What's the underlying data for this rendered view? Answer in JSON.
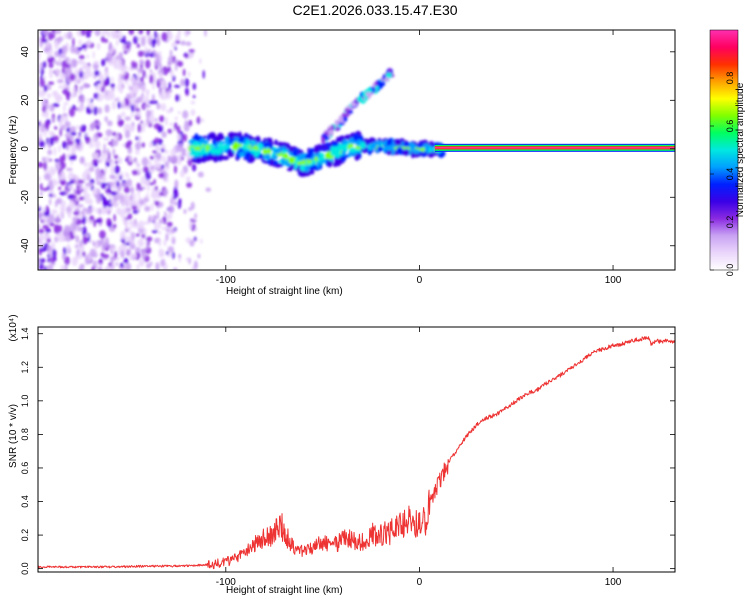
{
  "title": "C2E1.2026.033.15.47.E30",
  "chart_data": [
    {
      "type": "heatmap",
      "xlabel": "Height of straight line (km)",
      "ylabel": "Frequency (Hz)",
      "xlim": [
        -197,
        132
      ],
      "ylim": [
        -50,
        49
      ],
      "xticks": [
        -100,
        0,
        100
      ],
      "xtick_labels": [
        "-100",
        "0",
        "100"
      ],
      "yticks": [
        -40,
        -20,
        0,
        20,
        40
      ],
      "ytick_labels": [
        "-40",
        "-20",
        "0",
        "20",
        "40"
      ],
      "features": [
        {
          "name": "noise-field",
          "x_range": [
            -197,
            -108
          ],
          "y_range": [
            -50,
            49
          ]
        },
        {
          "name": "wandering-band",
          "points": [
            [
              -118,
              0
            ],
            [
              -100,
              1
            ],
            [
              -90,
              1
            ],
            [
              -80,
              -1
            ],
            [
              -70,
              -3
            ],
            [
              -60,
              -6
            ],
            [
              -52,
              -4
            ],
            [
              -45,
              -2
            ],
            [
              -35,
              1
            ],
            [
              -25,
              1
            ],
            [
              -15,
              1
            ],
            [
              -5,
              0
            ],
            [
              5,
              0
            ],
            [
              12,
              0
            ]
          ]
        },
        {
          "name": "branch",
          "points": [
            [
              -50,
              4
            ],
            [
              -42,
              10
            ],
            [
              -35,
              17
            ],
            [
              -28,
              22
            ],
            [
              -20,
              27
            ],
            [
              -14,
              32
            ]
          ]
        },
        {
          "name": "carrier-line",
          "x_range": [
            8,
            132
          ],
          "y": 0.4
        }
      ],
      "colorbar": {
        "label": "Normalized spectral amplitude",
        "range": [
          0,
          1
        ],
        "ticks": [
          0.0,
          0.2,
          0.4,
          0.6,
          0.8
        ],
        "tick_labels": [
          "0.0",
          "0.2",
          "0.4",
          "0.6",
          "0.8"
        ],
        "colors": [
          "#ffffff",
          "#ead6fb",
          "#c9a3f3",
          "#8a2be2",
          "#3a00e6",
          "#0020ff",
          "#00a0ff",
          "#00e8e0",
          "#00ff60",
          "#80ff00",
          "#ffff00",
          "#ffa000",
          "#ff3000",
          "#ff0060",
          "#ff2fb0"
        ]
      }
    },
    {
      "type": "line",
      "xlabel": "Height of straight line (km)",
      "ylabel": "SNR (10 * v/v)",
      "scale_note": "(x10⁴)",
      "xlim": [
        -197,
        132
      ],
      "ylim": [
        -0.02,
        1.44
      ],
      "xticks": [
        -100,
        0,
        100
      ],
      "xtick_labels": [
        "-100",
        "0",
        "100"
      ],
      "yticks": [
        0.0,
        0.2,
        0.4,
        0.6,
        0.8,
        1.0,
        1.2,
        1.4
      ],
      "ytick_labels": [
        "0.0",
        "0.2",
        "0.4",
        "0.6",
        "0.8",
        "1.0",
        "1.2",
        "1.4"
      ],
      "color": "#ee3333",
      "series": [
        {
          "name": "SNR",
          "x": [
            -197,
            -180,
            -160,
            -140,
            -125,
            -115,
            -108,
            -100,
            -95,
            -90,
            -85,
            -80,
            -75,
            -72,
            -70,
            -65,
            -60,
            -55,
            -50,
            -45,
            -40,
            -35,
            -30,
            -25,
            -20,
            -15,
            -10,
            -5,
            0,
            3,
            5,
            7,
            10,
            13,
            16,
            20,
            25,
            30,
            35,
            40,
            45,
            50,
            55,
            60,
            65,
            70,
            75,
            80,
            85,
            90,
            95,
            100,
            105,
            110,
            115,
            118,
            120,
            122,
            125,
            128,
            132
          ],
          "y": [
            0.01,
            0.01,
            0.01,
            0.015,
            0.015,
            0.02,
            0.025,
            0.04,
            0.06,
            0.1,
            0.15,
            0.18,
            0.2,
            0.3,
            0.22,
            0.13,
            0.1,
            0.12,
            0.16,
            0.13,
            0.17,
            0.18,
            0.16,
            0.2,
            0.21,
            0.22,
            0.26,
            0.28,
            0.26,
            0.28,
            0.36,
            0.45,
            0.5,
            0.58,
            0.65,
            0.72,
            0.8,
            0.86,
            0.9,
            0.92,
            0.96,
            1.0,
            1.04,
            1.06,
            1.1,
            1.13,
            1.17,
            1.21,
            1.25,
            1.29,
            1.31,
            1.33,
            1.34,
            1.36,
            1.37,
            1.38,
            1.33,
            1.36,
            1.35,
            1.36,
            1.35
          ]
        }
      ]
    }
  ]
}
